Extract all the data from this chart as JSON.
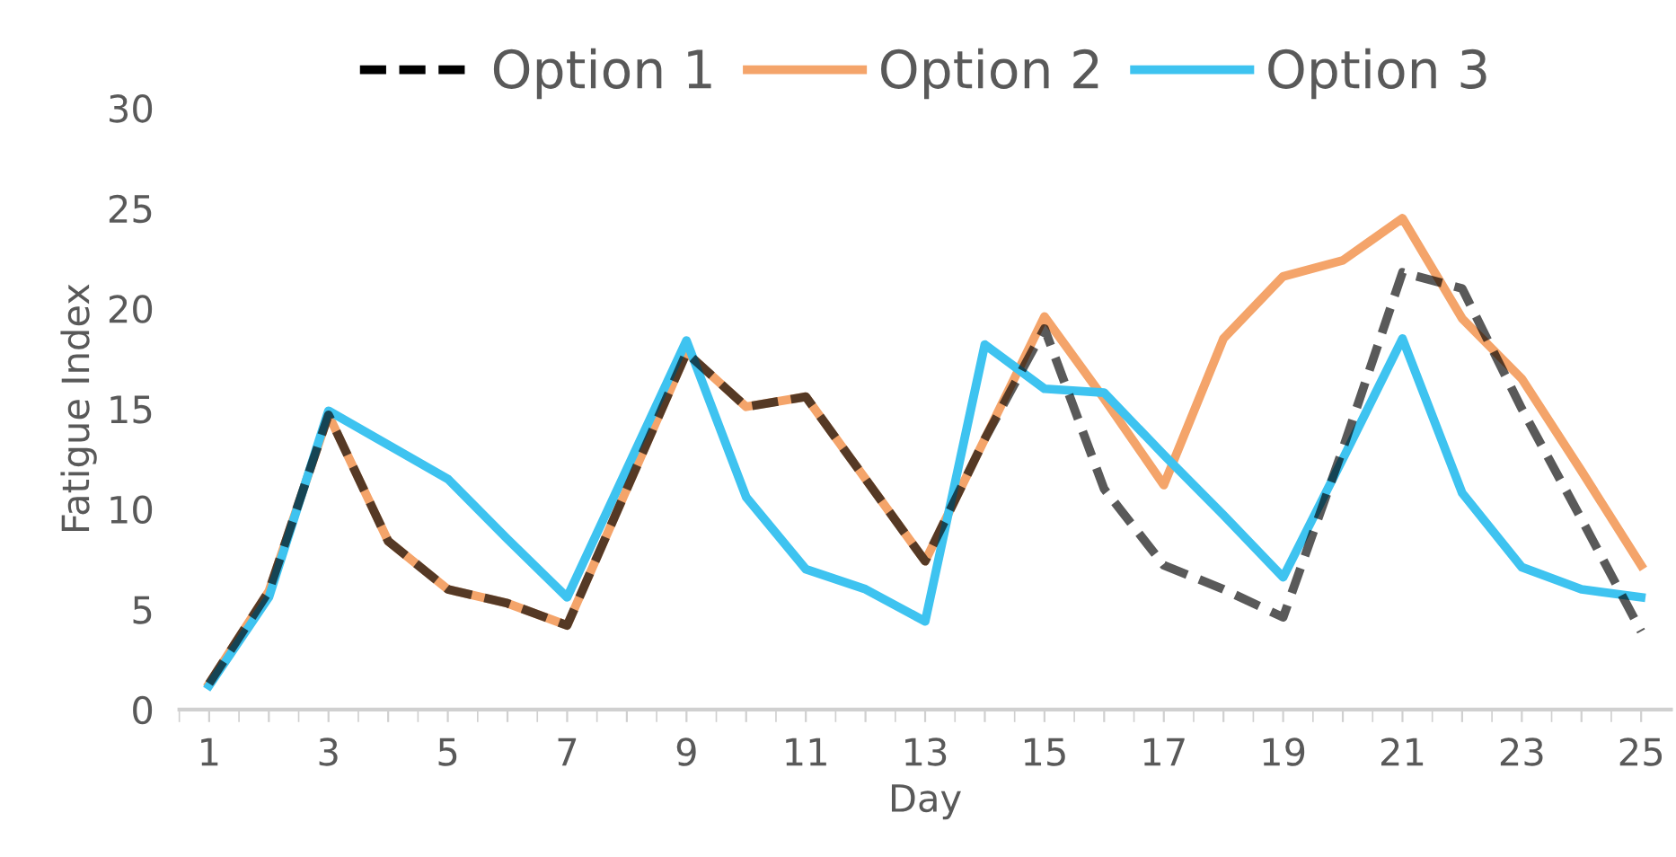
{
  "chart_data": {
    "type": "line",
    "xlabel": "Day",
    "ylabel": "Fatigue Index",
    "categories": [
      "1",
      null,
      "3",
      null,
      "5",
      null,
      "7",
      null,
      "9",
      null,
      "11",
      null,
      "13",
      null,
      "15",
      null,
      "17",
      null,
      "19",
      null,
      "21",
      null,
      "23",
      null,
      "25"
    ],
    "ylim": [
      0,
      30
    ],
    "yticks": [
      0,
      5,
      10,
      15,
      20,
      25,
      30
    ],
    "grid": false,
    "legend": "top",
    "series": [
      {
        "name": "Option 1",
        "color": "#000000",
        "line_style": "dashed",
        "values": [
          1.3,
          5.9,
          14.7,
          8.4,
          6.0,
          5.3,
          4.2,
          11.0,
          17.8,
          15.1,
          15.6,
          11.5,
          7.4,
          13.5,
          19.0,
          11.0,
          7.2,
          6.0,
          4.6,
          13.0,
          21.8,
          21.0,
          15.0,
          9.5,
          3.9
        ]
      },
      {
        "name": "Option 2",
        "color": "#f4a46a",
        "line_style": "solid",
        "values": [
          1.3,
          5.9,
          14.7,
          8.4,
          6.0,
          5.3,
          4.2,
          11.0,
          17.8,
          15.1,
          15.6,
          11.5,
          7.4,
          13.5,
          19.6,
          15.5,
          11.2,
          18.5,
          21.6,
          22.4,
          24.5,
          19.5,
          16.5,
          11.9,
          7.2
        ]
      },
      {
        "name": "Option 3",
        "color": "#3ec3f0",
        "line_style": "solid",
        "values": [
          1.2,
          5.6,
          14.9,
          13.2,
          11.5,
          8.5,
          5.6,
          12.0,
          18.4,
          10.6,
          7.0,
          6.0,
          4.4,
          18.2,
          16.0,
          15.8,
          12.7,
          9.7,
          6.6,
          12.5,
          18.5,
          10.8,
          7.1,
          6.0,
          5.6
        ]
      }
    ]
  }
}
